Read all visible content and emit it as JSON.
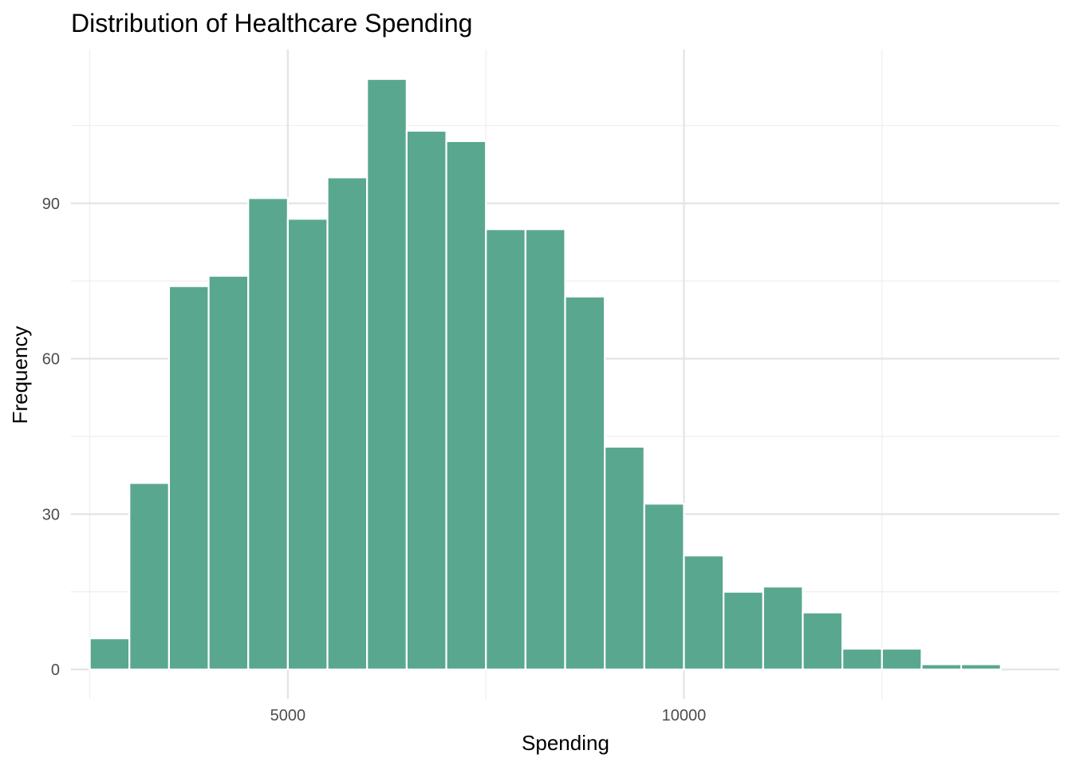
{
  "chart_data": {
    "type": "bar",
    "title": "Distribution of Healthcare Spending",
    "xlabel": "Spending",
    "ylabel": "Frequency",
    "bin_width": 500,
    "bin_start": 2500,
    "bins": [
      {
        "x_start": 2500,
        "x_end": 3000,
        "value": 6
      },
      {
        "x_start": 3000,
        "x_end": 3500,
        "value": 36
      },
      {
        "x_start": 3500,
        "x_end": 4000,
        "value": 74
      },
      {
        "x_start": 4000,
        "x_end": 4500,
        "value": 76
      },
      {
        "x_start": 4500,
        "x_end": 5000,
        "value": 91
      },
      {
        "x_start": 5000,
        "x_end": 5500,
        "value": 87
      },
      {
        "x_start": 5500,
        "x_end": 6000,
        "value": 95
      },
      {
        "x_start": 6000,
        "x_end": 6500,
        "value": 114
      },
      {
        "x_start": 6500,
        "x_end": 7000,
        "value": 104
      },
      {
        "x_start": 7000,
        "x_end": 7500,
        "value": 102
      },
      {
        "x_start": 7500,
        "x_end": 8000,
        "value": 85
      },
      {
        "x_start": 8000,
        "x_end": 8500,
        "value": 85
      },
      {
        "x_start": 8500,
        "x_end": 9000,
        "value": 72
      },
      {
        "x_start": 9000,
        "x_end": 9500,
        "value": 43
      },
      {
        "x_start": 9500,
        "x_end": 10000,
        "value": 32
      },
      {
        "x_start": 10000,
        "x_end": 10500,
        "value": 22
      },
      {
        "x_start": 10500,
        "x_end": 11000,
        "value": 15
      },
      {
        "x_start": 11000,
        "x_end": 11500,
        "value": 16
      },
      {
        "x_start": 11500,
        "x_end": 12000,
        "value": 11
      },
      {
        "x_start": 12000,
        "x_end": 12500,
        "value": 4
      },
      {
        "x_start": 12500,
        "x_end": 13000,
        "value": 4
      },
      {
        "x_start": 13000,
        "x_end": 13500,
        "value": 1
      },
      {
        "x_start": 13500,
        "x_end": 14000,
        "value": 1
      }
    ],
    "xlim": [
      2262.5,
      14737.5
    ],
    "ylim": [
      -5.7,
      119.7
    ],
    "x_major_ticks": [
      5000,
      10000
    ],
    "x_tick_labels": [
      "5000",
      "10000"
    ],
    "x_minor_gridlines": [
      2500,
      7500,
      12500
    ],
    "y_major_ticks": [
      0,
      30,
      60,
      90
    ],
    "y_tick_labels": [
      "0",
      "30",
      "60",
      "90"
    ],
    "y_minor_gridlines": [
      15,
      45,
      75,
      105
    ],
    "grid": true,
    "legend": "none",
    "colors": {
      "bar_fill": "#5AA790",
      "bar_outline": "#FFFFFF",
      "grid_major": "#E5E5E5",
      "grid_minor": "#EEEEEE",
      "tick_text": "#4D4D4D",
      "title_text": "#000000",
      "background": "#FFFFFF"
    }
  }
}
